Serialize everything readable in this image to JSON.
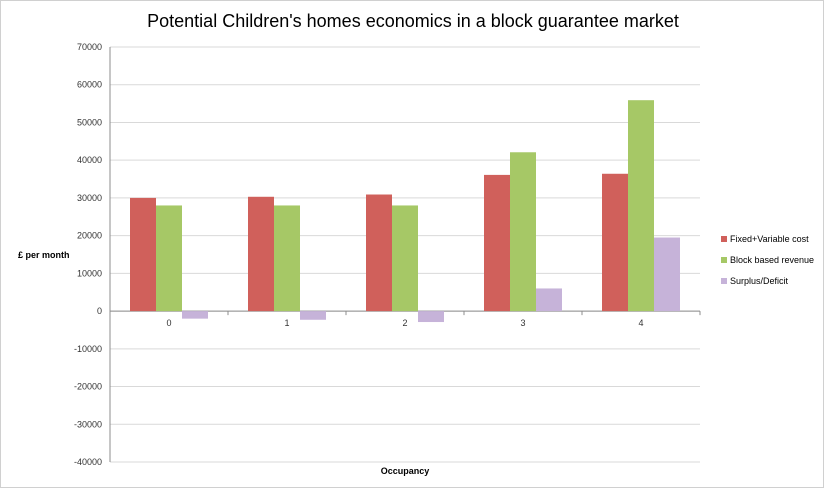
{
  "chart_data": {
    "type": "bar",
    "title": "Potential Children's homes economics in a block guarantee market",
    "xlabel": "Occupancy",
    "ylabel": "£ per month",
    "categories": [
      "0",
      "1",
      "2",
      "3",
      "4"
    ],
    "series": [
      {
        "name": "Fixed+Variable cost",
        "values": [
          30000,
          30300,
          30900,
          36100,
          36400
        ],
        "color": "#d0605b"
      },
      {
        "name": "Block based revenue",
        "values": [
          28000,
          28000,
          28000,
          42100,
          55900
        ],
        "color": "#a6c866"
      },
      {
        "name": "Surplus/Deficit",
        "values": [
          -2000,
          -2300,
          -2900,
          6000,
          19500
        ],
        "color": "#c6b3d9"
      }
    ],
    "ylim": [
      -40000,
      70000
    ],
    "yticks": [
      70000,
      60000,
      50000,
      40000,
      30000,
      20000,
      10000,
      0,
      -10000,
      -20000,
      -30000,
      -40000
    ],
    "grid": true,
    "legend": "right"
  }
}
